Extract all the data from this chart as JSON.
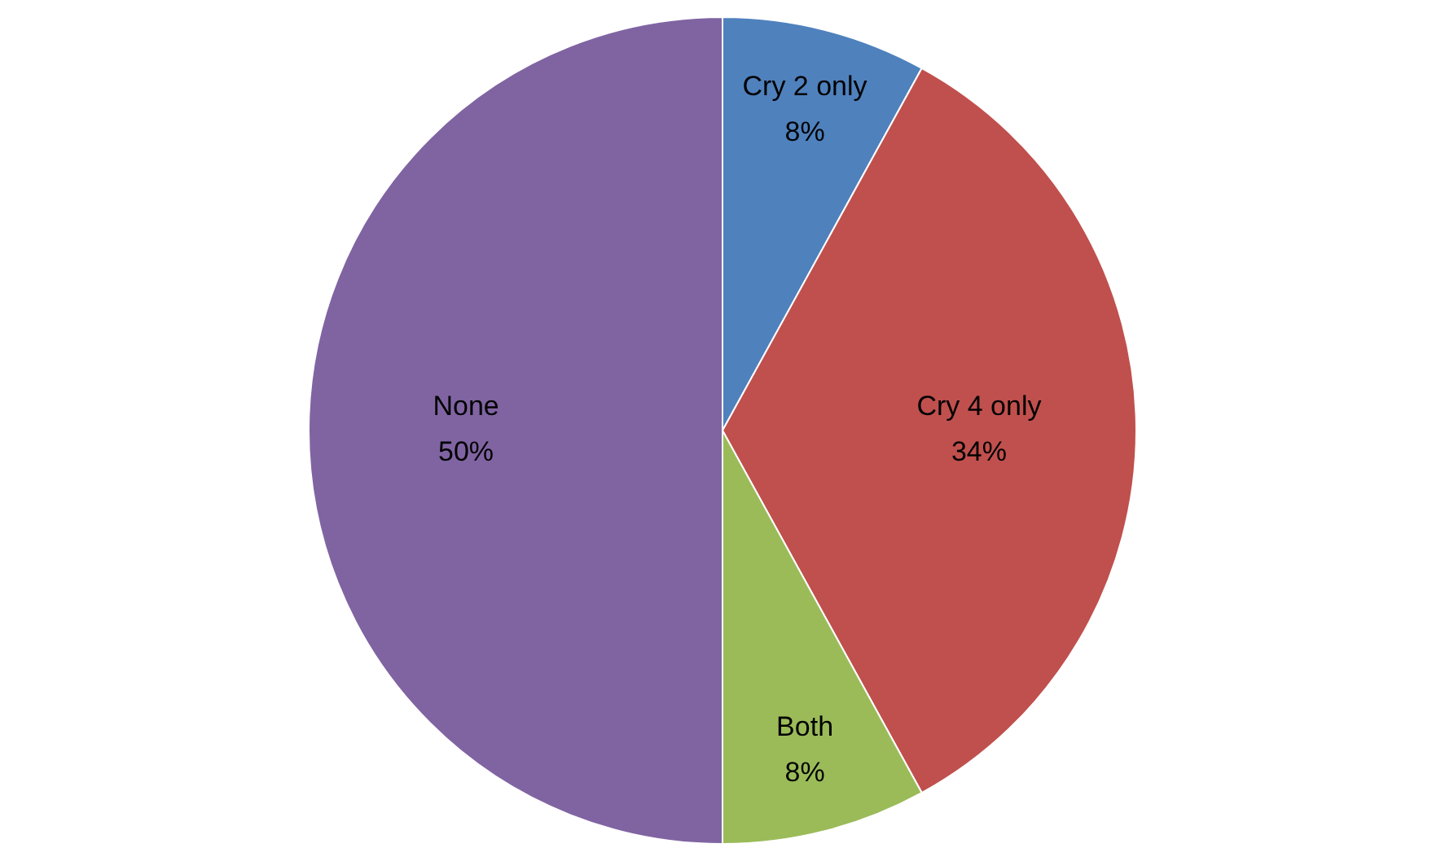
{
  "chart_data": {
    "type": "pie",
    "categories": [
      "Cry 2 only",
      "Cry 4 only",
      "Both",
      "None"
    ],
    "values": [
      8,
      34,
      8,
      50
    ],
    "value_labels": [
      "8%",
      "34%",
      "8%",
      "50%"
    ],
    "colors": [
      "#4f81bd",
      "#c0504d",
      "#9bbb59",
      "#8064a2"
    ],
    "legend": false
  }
}
